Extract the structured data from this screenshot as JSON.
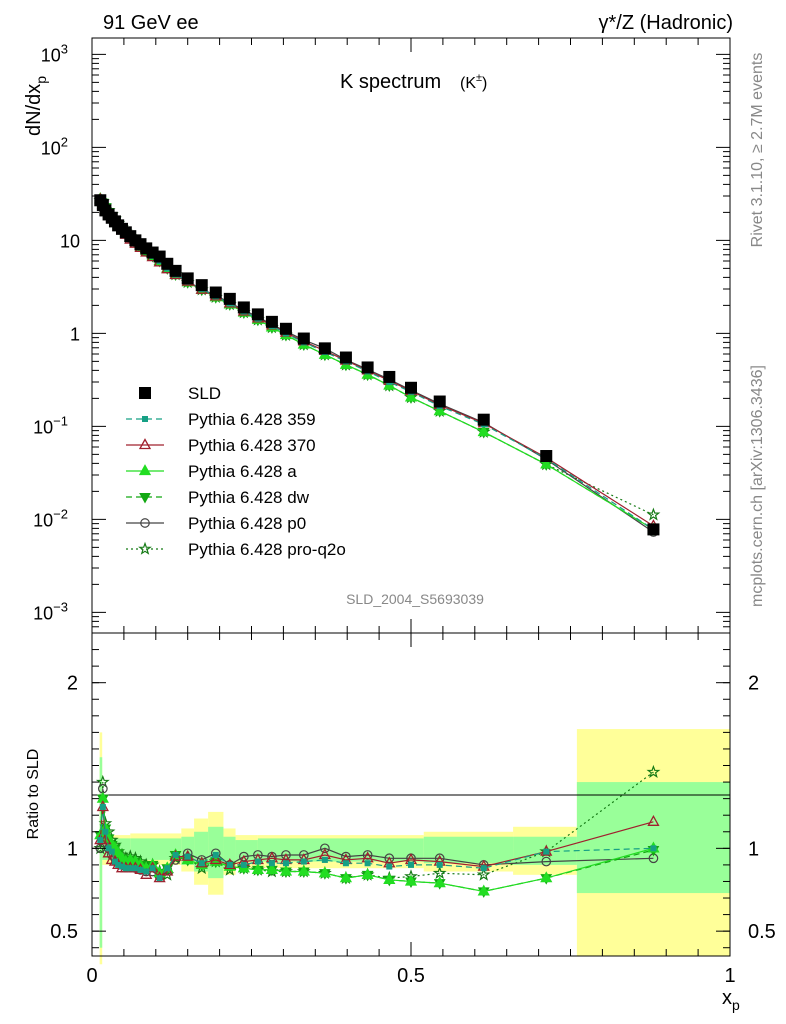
{
  "header": {
    "left": "91 GeV ee",
    "right": "γ*/Z (Hadronic)",
    "side_top": "Rivet 3.1.10, ≥ 2.7M events",
    "side_bottom": "mcplots.cern.ch [arXiv:1306.3436]"
  },
  "chart_data": [
    {
      "type": "scatter",
      "title": "K spectrum",
      "title_suffix": "(K",
      "title_sup": "±",
      "title_close": ")",
      "ylabel": "dN/dx",
      "ylabel_sub": "p",
      "yscale": "log",
      "ylim": [
        0.0006,
        1500
      ],
      "xlim": [
        0,
        1
      ],
      "watermark": "SLD_2004_S5693039",
      "y_ticks": [
        {
          "base": "10",
          "exp": "3",
          "value": 1000
        },
        {
          "base": "10",
          "exp": "2",
          "value": 100
        },
        {
          "base": "10",
          "exp": "",
          "value": 10
        },
        {
          "base": "1",
          "exp": "",
          "value": 1
        },
        {
          "base": "10",
          "exp": "−1",
          "value": 0.1
        },
        {
          "base": "10",
          "exp": "−2",
          "value": 0.01
        },
        {
          "base": "10",
          "exp": "−3",
          "value": 0.001
        }
      ],
      "x": [
        0.013,
        0.017,
        0.021,
        0.026,
        0.031,
        0.036,
        0.041,
        0.047,
        0.053,
        0.06,
        0.068,
        0.076,
        0.085,
        0.095,
        0.106,
        0.118,
        0.131,
        0.15,
        0.172,
        0.194,
        0.216,
        0.238,
        0.26,
        0.282,
        0.304,
        0.332,
        0.365,
        0.398,
        0.432,
        0.466,
        0.5,
        0.545,
        0.614,
        0.712,
        0.88
      ],
      "series": [
        {
          "name": "SLD",
          "color": "#000000",
          "marker": "square",
          "line": "none",
          "values": [
            27,
            24,
            21,
            19,
            17.5,
            16,
            14.5,
            13.3,
            12.2,
            11.1,
            10,
            9.1,
            8.2,
            7.4,
            6.7,
            5.6,
            4.7,
            3.9,
            3.3,
            2.75,
            2.35,
            1.9,
            1.6,
            1.33,
            1.12,
            0.88,
            0.69,
            0.55,
            0.43,
            0.34,
            0.26,
            0.185,
            0.118,
            0.048,
            0.0078
          ]
        },
        {
          "name": "Pythia 6.428 359",
          "color": "#16a085",
          "marker": "square-small",
          "line": "dashed",
          "values": [
            28,
            25,
            22.5,
            20,
            18,
            16.3,
            14.7,
            13.2,
            11.9,
            10.6,
            9.6,
            8.6,
            7.6,
            6.8,
            6.0,
            5.0,
            4.3,
            3.6,
            3.0,
            2.5,
            2.1,
            1.72,
            1.44,
            1.2,
            1.0,
            0.8,
            0.63,
            0.5,
            0.39,
            0.3,
            0.235,
            0.165,
            0.105,
            0.045,
            0.0078
          ]
        },
        {
          "name": "Pythia 6.428 370",
          "color": "#a0202e",
          "marker": "triangle-open",
          "line": "solid",
          "values": [
            27.5,
            24.5,
            22,
            19.5,
            17.5,
            15.8,
            14.2,
            12.8,
            11.5,
            10.2,
            9.2,
            8.3,
            7.4,
            6.6,
            5.8,
            4.9,
            4.25,
            3.6,
            2.95,
            2.5,
            2.1,
            1.72,
            1.45,
            1.22,
            1.02,
            0.82,
            0.65,
            0.51,
            0.4,
            0.31,
            0.24,
            0.17,
            0.108,
            0.046,
            0.0085
          ]
        },
        {
          "name": "Pythia 6.428 a",
          "color": "#22dd22",
          "marker": "triangle",
          "line": "solid",
          "values": [
            28,
            25.5,
            22.8,
            20.2,
            18.2,
            16.5,
            14.8,
            13.3,
            12,
            10.7,
            9.6,
            8.6,
            7.7,
            6.8,
            6.0,
            5.0,
            4.3,
            3.55,
            2.95,
            2.45,
            2.05,
            1.68,
            1.4,
            1.16,
            0.96,
            0.76,
            0.59,
            0.46,
            0.36,
            0.275,
            0.205,
            0.146,
            0.087,
            0.039,
            0.0078
          ]
        },
        {
          "name": "Pythia 6.428 dw",
          "color": "#12a812",
          "marker": "triangle-down",
          "line": "dashed",
          "values": [
            28,
            25.5,
            22.8,
            20.2,
            18.2,
            16.5,
            14.8,
            13.3,
            12,
            10.7,
            9.6,
            8.6,
            7.7,
            6.8,
            6.0,
            5.0,
            4.3,
            3.55,
            2.95,
            2.45,
            2.05,
            1.68,
            1.4,
            1.16,
            0.96,
            0.76,
            0.59,
            0.46,
            0.36,
            0.275,
            0.205,
            0.146,
            0.087,
            0.039,
            0.0078
          ]
        },
        {
          "name": "Pythia 6.428 p0",
          "color": "#444444",
          "marker": "circle-open",
          "line": "solid",
          "values": [
            28,
            25,
            22.5,
            20,
            18,
            16.2,
            14.5,
            13.1,
            11.8,
            10.5,
            9.5,
            8.5,
            7.6,
            6.8,
            6.0,
            5.0,
            4.3,
            3.6,
            3.0,
            2.55,
            2.15,
            1.78,
            1.5,
            1.25,
            1.05,
            0.85,
            0.69,
            0.52,
            0.41,
            0.32,
            0.245,
            0.175,
            0.11,
            0.044,
            0.0073
          ]
        },
        {
          "name": "Pythia 6.428 pro-q2o",
          "color": "#157a15",
          "marker": "star",
          "line": "dotted",
          "values": [
            27,
            26,
            23.5,
            21,
            19,
            17,
            15.3,
            13.7,
            12.3,
            11,
            9.8,
            8.8,
            7.8,
            7.0,
            6.1,
            5.1,
            4.3,
            3.55,
            2.95,
            2.45,
            2.05,
            1.68,
            1.4,
            1.16,
            0.96,
            0.76,
            0.59,
            0.46,
            0.36,
            0.275,
            0.205,
            0.146,
            0.087,
            0.039,
            0.0112
          ]
        }
      ]
    },
    {
      "type": "line",
      "ylabel": "Ratio to SLD",
      "xlabel": "x",
      "xlabel_sub": "p",
      "ylim": [
        0.35,
        2.3
      ],
      "xlim": [
        0,
        1
      ],
      "y_ticks": [
        {
          "label": "0.5",
          "value": 0.5
        },
        {
          "label": "1",
          "value": 1
        },
        {
          "label": "2",
          "value": 2
        }
      ],
      "x_ticks": [
        {
          "label": "0",
          "value": 0
        },
        {
          "label": "0.5",
          "value": 0.5
        },
        {
          "label": "1",
          "value": 1
        }
      ],
      "bands": [
        {
          "x0": 0.012,
          "x1": 0.016,
          "stat": [
            0.4,
            1.55
          ],
          "total": [
            0.3,
            1.7
          ]
        },
        {
          "x0": 0.016,
          "x1": 0.06,
          "stat": [
            0.93,
            1.06
          ],
          "total": [
            0.9,
            1.08
          ]
        },
        {
          "x0": 0.06,
          "x1": 0.14,
          "stat": [
            0.93,
            1.06
          ],
          "total": [
            0.9,
            1.09
          ]
        },
        {
          "x0": 0.14,
          "x1": 0.16,
          "stat": [
            0.9,
            1.07
          ],
          "total": [
            0.86,
            1.12
          ]
        },
        {
          "x0": 0.16,
          "x1": 0.182,
          "stat": [
            0.86,
            1.1
          ],
          "total": [
            0.78,
            1.18
          ]
        },
        {
          "x0": 0.182,
          "x1": 0.206,
          "stat": [
            0.82,
            1.13
          ],
          "total": [
            0.72,
            1.22
          ]
        },
        {
          "x0": 0.206,
          "x1": 0.225,
          "stat": [
            0.88,
            1.07
          ],
          "total": [
            0.84,
            1.12
          ]
        },
        {
          "x0": 0.225,
          "x1": 0.26,
          "stat": [
            0.92,
            1.05
          ],
          "total": [
            0.88,
            1.08
          ]
        },
        {
          "x0": 0.26,
          "x1": 0.52,
          "stat": [
            0.92,
            1.06
          ],
          "total": [
            0.88,
            1.08
          ]
        },
        {
          "x0": 0.52,
          "x1": 0.66,
          "stat": [
            0.91,
            1.07
          ],
          "total": [
            0.86,
            1.1
          ]
        },
        {
          "x0": 0.66,
          "x1": 0.76,
          "stat": [
            0.9,
            1.07
          ],
          "total": [
            0.84,
            1.13
          ]
        },
        {
          "x0": 0.76,
          "x1": 1.0,
          "stat": [
            0.73,
            1.4
          ],
          "total": [
            0.35,
            1.72
          ]
        }
      ],
      "x": [
        0.013,
        0.017,
        0.021,
        0.026,
        0.031,
        0.036,
        0.041,
        0.047,
        0.053,
        0.06,
        0.068,
        0.076,
        0.085,
        0.095,
        0.106,
        0.118,
        0.131,
        0.15,
        0.172,
        0.194,
        0.216,
        0.238,
        0.26,
        0.282,
        0.304,
        0.332,
        0.365,
        0.398,
        0.432,
        0.466,
        0.5,
        0.545,
        0.614,
        0.712,
        0.88
      ],
      "series": [
        {
          "name": "Pythia 6.428 359",
          "color": "#16a085",
          "marker": "square-small",
          "line": "dashed",
          "values": [
            1.05,
            1.25,
            1.1,
            1.0,
            0.98,
            0.92,
            0.9,
            0.89,
            0.88,
            0.88,
            0.88,
            0.87,
            0.86,
            0.88,
            0.82,
            0.88,
            0.96,
            0.95,
            0.91,
            0.96,
            0.9,
            0.9,
            0.92,
            0.91,
            0.91,
            0.92,
            0.93,
            0.91,
            0.91,
            0.89,
            0.9,
            0.9,
            0.88,
            0.98,
            1.0
          ]
        },
        {
          "name": "Pythia 6.428 370",
          "color": "#a0202e",
          "marker": "triangle-open",
          "line": "solid",
          "values": [
            1.05,
            1.25,
            1.05,
            0.97,
            0.93,
            0.92,
            0.9,
            0.88,
            0.88,
            0.88,
            0.88,
            0.87,
            0.84,
            0.88,
            0.82,
            0.86,
            0.95,
            0.95,
            0.91,
            0.93,
            0.9,
            0.92,
            0.93,
            0.94,
            0.93,
            0.93,
            0.96,
            0.93,
            0.94,
            0.91,
            0.93,
            0.92,
            0.89,
            0.98,
            1.16
          ]
        },
        {
          "name": "Pythia 6.428 a",
          "color": "#22dd22",
          "marker": "triangle",
          "line": "solid",
          "values": [
            1.08,
            1.3,
            1.12,
            1.06,
            1.02,
            1.0,
            0.97,
            0.94,
            0.92,
            0.93,
            0.92,
            0.9,
            0.88,
            0.9,
            0.85,
            0.88,
            0.96,
            0.93,
            0.9,
            0.92,
            0.89,
            0.88,
            0.87,
            0.87,
            0.86,
            0.86,
            0.85,
            0.82,
            0.84,
            0.81,
            0.8,
            0.79,
            0.74,
            0.82,
            1.0
          ]
        },
        {
          "name": "Pythia 6.428 dw",
          "color": "#12a812",
          "marker": "triangle-down",
          "line": "dashed",
          "values": [
            1.08,
            1.3,
            1.12,
            1.06,
            1.02,
            1.0,
            0.97,
            0.94,
            0.92,
            0.93,
            0.92,
            0.9,
            0.88,
            0.9,
            0.85,
            0.88,
            0.96,
            0.93,
            0.9,
            0.92,
            0.89,
            0.88,
            0.87,
            0.87,
            0.86,
            0.86,
            0.85,
            0.82,
            0.84,
            0.81,
            0.8,
            0.79,
            0.74,
            0.82,
            0.99
          ]
        },
        {
          "name": "Pythia 6.428 p0",
          "color": "#444444",
          "marker": "circle-open",
          "line": "solid",
          "values": [
            1.0,
            1.36,
            1.1,
            1.0,
            0.96,
            0.94,
            0.92,
            0.9,
            0.89,
            0.89,
            0.88,
            0.87,
            0.86,
            0.86,
            0.83,
            0.87,
            0.93,
            0.97,
            0.93,
            0.97,
            0.9,
            0.95,
            0.96,
            0.95,
            0.96,
            0.96,
            1.0,
            0.95,
            0.96,
            0.94,
            0.94,
            0.94,
            0.9,
            0.92,
            0.94
          ]
        },
        {
          "name": "Pythia 6.428 pro-q2o",
          "color": "#157a15",
          "marker": "star",
          "line": "dotted",
          "values": [
            1.0,
            1.4,
            1.15,
            1.1,
            1.05,
            1.02,
            0.98,
            0.96,
            0.94,
            0.95,
            0.94,
            0.92,
            0.9,
            0.9,
            0.86,
            0.84,
            0.94,
            0.94,
            0.88,
            0.92,
            0.87,
            0.88,
            0.87,
            0.86,
            0.86,
            0.86,
            0.85,
            0.82,
            0.84,
            0.82,
            0.83,
            0.85,
            0.84,
            0.98,
            1.46
          ]
        }
      ]
    }
  ]
}
